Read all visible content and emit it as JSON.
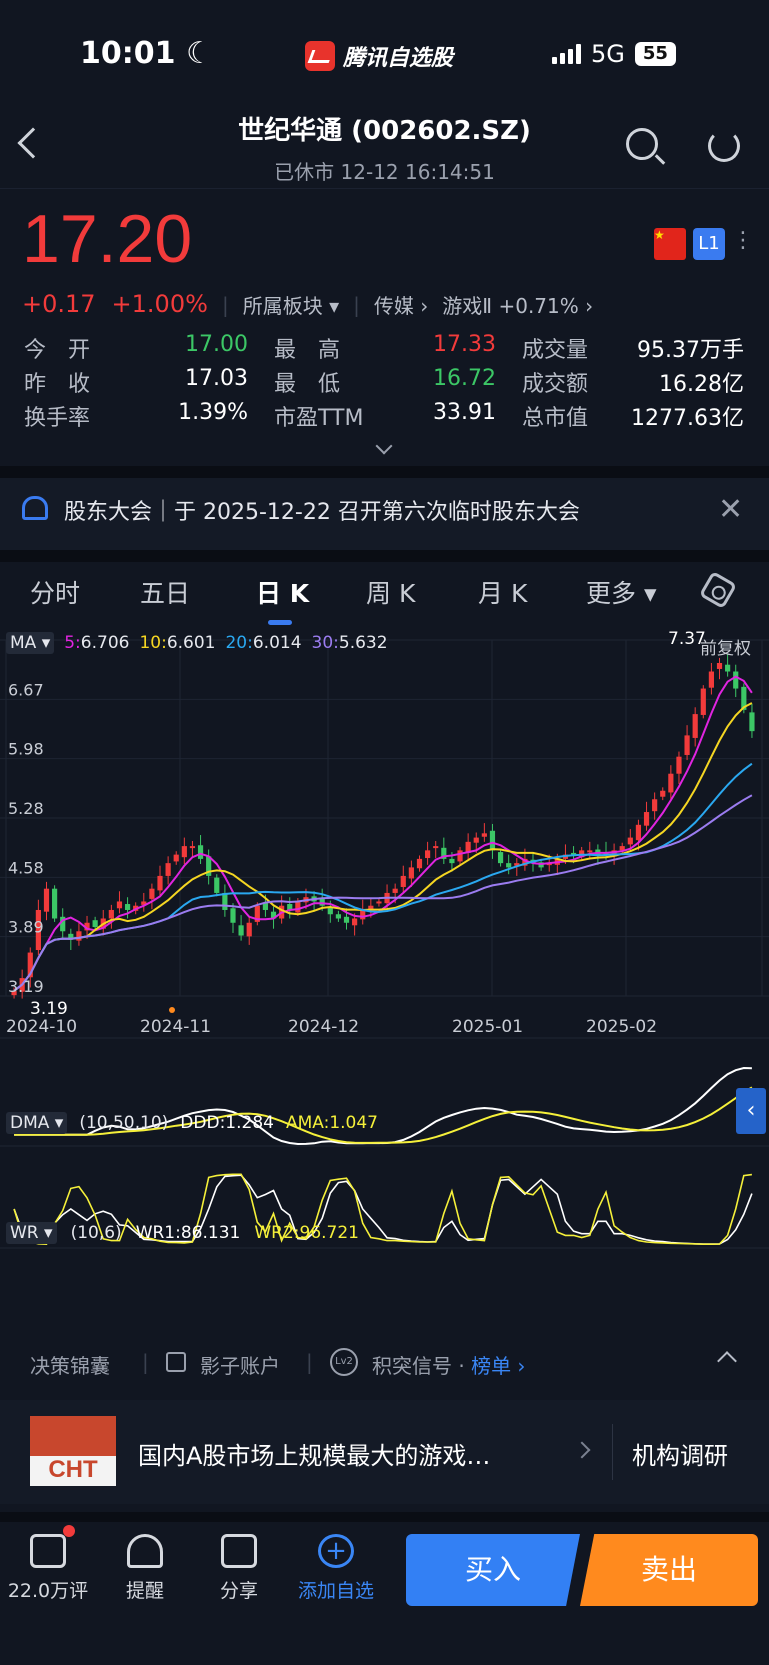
{
  "status_bar": {
    "time": "10:01",
    "app_name": "腾讯自选股",
    "network": "5G",
    "battery": "55"
  },
  "header": {
    "title": "世纪华通 (002602.SZ)",
    "subtitle": "已休市  12-12 16:14:51"
  },
  "quote": {
    "price": "17.20",
    "change": "+0.17",
    "change_pct": "+1.00%",
    "sector_btn": "所属板块",
    "sector1": "传媒",
    "sector2": "游戏Ⅱ +0.71%",
    "badge": "L1",
    "stats": [
      {
        "label": "今　开",
        "value": "17.00",
        "color": "green"
      },
      {
        "label": "最　高",
        "value": "17.33",
        "color": "red"
      },
      {
        "label": "成交量",
        "value": "95.37万手",
        "color": "white"
      },
      {
        "label": "昨　收",
        "value": "17.03",
        "color": "white"
      },
      {
        "label": "最　低",
        "value": "16.72",
        "color": "green"
      },
      {
        "label": "成交额",
        "value": "16.28亿",
        "color": "white"
      },
      {
        "label": "换手率",
        "value": "1.39%",
        "color": "white"
      },
      {
        "label": "市盈TTM",
        "value": "33.91",
        "color": "white"
      },
      {
        "label": "总市值",
        "value": "1277.63亿",
        "color": "white"
      }
    ]
  },
  "notice": {
    "text": "股东大会｜于 2025-12-22 召开第六次临时股东大会"
  },
  "tabs": [
    "分时",
    "五日",
    "日 K",
    "周 K",
    "月 K",
    "更多"
  ],
  "chart": {
    "ma_header": {
      "label": "MA",
      "ma5": "6.706",
      "ma10": "6.601",
      "ma20": "6.014",
      "ma30": "5.632",
      "adjust": "前复权"
    },
    "y_ticks": [
      "7.37",
      "6.67",
      "5.98",
      "5.28",
      "4.58",
      "3.89",
      "3.19"
    ],
    "x_ticks": [
      "2024-10",
      "2024-11",
      "2024-12",
      "2025-01",
      "2025-02"
    ],
    "max_label": "7.37",
    "min_label": "3.19",
    "dma_header": {
      "label": "DMA",
      "params": "(10,50,10)",
      "ddd": "DDD:1.284",
      "ama": "AMA:1.047"
    },
    "wr_header": {
      "label": "WR",
      "params": "(10,6)",
      "wr1": "WR1:86.131",
      "wr2": "WR2:96.721"
    },
    "colors": {
      "up": "#f23b3b",
      "down": "#3cc766",
      "ma5": "#e024e0",
      "ma10": "#f5d622",
      "ma20": "#2aa8f0",
      "ma30": "#9b7cf0"
    }
  },
  "chart_data": {
    "type": "line",
    "title": "",
    "x_tick_labels": [
      "2024-10",
      "2024-11",
      "2024-12",
      "2025-01",
      "2025-02"
    ],
    "ylim": [
      3.19,
      7.37
    ],
    "closes": [
      3.25,
      3.4,
      3.7,
      4.2,
      4.45,
      4.1,
      3.95,
      3.85,
      3.95,
      4.05,
      4.0,
      4.1,
      4.2,
      4.3,
      4.2,
      4.25,
      4.3,
      4.45,
      4.6,
      4.75,
      4.85,
      4.95,
      4.95,
      4.8,
      4.6,
      4.4,
      4.2,
      4.05,
      3.9,
      4.05,
      4.25,
      4.2,
      4.1,
      4.25,
      4.2,
      4.3,
      4.35,
      4.3,
      4.25,
      4.15,
      4.1,
      4.05,
      4.1,
      4.2,
      4.25,
      4.3,
      4.4,
      4.45,
      4.6,
      4.7,
      4.8,
      4.9,
      4.95,
      4.8,
      4.75,
      4.9,
      5.0,
      5.05,
      5.1,
      4.9,
      4.75,
      4.7,
      4.75,
      4.8,
      4.75,
      4.7,
      4.75,
      4.8,
      4.85,
      4.85,
      4.9,
      4.9,
      4.85,
      4.85,
      4.9,
      4.95,
      5.05,
      5.2,
      5.35,
      5.5,
      5.6,
      5.8,
      6.0,
      6.25,
      6.5,
      6.8,
      7.0,
      7.1,
      7.0,
      6.8,
      6.55,
      6.3
    ],
    "series": [
      {
        "name": "MA5",
        "value": "6.706"
      },
      {
        "name": "MA10",
        "value": "6.601"
      },
      {
        "name": "MA20",
        "value": "6.014"
      },
      {
        "name": "MA30",
        "value": "5.632"
      }
    ]
  },
  "tools": {
    "item1": "决策锦囊",
    "item2": "影子账户",
    "item3": "积突信号",
    "item3_link": "榜单"
  },
  "promo": {
    "logo_text": "CHT",
    "text": "国内A股市场上规模最大的游戏…",
    "right": "机构调研"
  },
  "footer": {
    "comments": "22.0万评",
    "remind": "提醒",
    "share": "分享",
    "add": "添加自选",
    "buy": "买入",
    "sell": "卖出"
  }
}
